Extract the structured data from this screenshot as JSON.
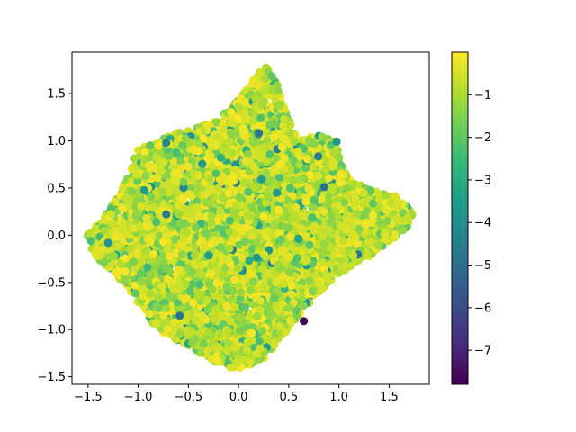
{
  "chart_data": {
    "type": "scatter",
    "title": "",
    "xlabel": "",
    "ylabel": "",
    "xlim": [
      -1.66,
      1.9
    ],
    "ylim": [
      -1.58,
      1.94
    ],
    "x_ticks": [
      -1.5,
      -1.0,
      -0.5,
      0.0,
      0.5,
      1.0,
      1.5
    ],
    "x_tick_labels": [
      "−1.5",
      "−1.0",
      "−0.5",
      "0.0",
      "0.5",
      "1.0",
      "1.5"
    ],
    "y_ticks": [
      -1.5,
      -1.0,
      -0.5,
      0.0,
      0.5,
      1.0,
      1.5
    ],
    "y_tick_labels": [
      "−1.5",
      "−1.0",
      "−0.5",
      "0.0",
      "0.5",
      "1.0",
      "1.5"
    ],
    "grid": false,
    "colormap": "viridis",
    "color_range": [
      -7.8,
      0.0
    ],
    "colorbar": {
      "ticks": [
        -1,
        -2,
        -3,
        -4,
        -5,
        -6,
        -7
      ],
      "tick_labels": [
        "−1",
        "−2",
        "−3",
        "−4",
        "−5",
        "−6",
        "−7"
      ]
    },
    "cloud_outline": [
      [
        -1.52,
        -0.02
      ],
      [
        -1.38,
        0.15
      ],
      [
        -1.2,
        0.4
      ],
      [
        -1.08,
        0.66
      ],
      [
        -1.02,
        0.9
      ],
      [
        -0.8,
        1.02
      ],
      [
        -0.5,
        1.12
      ],
      [
        -0.3,
        1.18
      ],
      [
        -0.1,
        1.32
      ],
      [
        0.05,
        1.5
      ],
      [
        0.2,
        1.72
      ],
      [
        0.28,
        1.8
      ],
      [
        0.38,
        1.6
      ],
      [
        0.48,
        1.3
      ],
      [
        0.55,
        1.08
      ],
      [
        0.65,
        1.02
      ],
      [
        0.82,
        1.08
      ],
      [
        0.98,
        1.02
      ],
      [
        1.0,
        0.85
      ],
      [
        1.1,
        0.6
      ],
      [
        1.3,
        0.48
      ],
      [
        1.55,
        0.42
      ],
      [
        1.68,
        0.3
      ],
      [
        1.75,
        0.2
      ],
      [
        1.68,
        0.08
      ],
      [
        1.45,
        -0.12
      ],
      [
        1.2,
        -0.3
      ],
      [
        1.0,
        -0.4
      ],
      [
        0.8,
        -0.6
      ],
      [
        0.62,
        -0.82
      ],
      [
        0.45,
        -1.05
      ],
      [
        0.28,
        -1.3
      ],
      [
        0.1,
        -1.4
      ],
      [
        -0.1,
        -1.4
      ],
      [
        -0.3,
        -1.3
      ],
      [
        -0.55,
        -1.15
      ],
      [
        -0.8,
        -1.0
      ],
      [
        -0.95,
        -0.8
      ],
      [
        -1.1,
        -0.55
      ],
      [
        -1.3,
        -0.35
      ],
      [
        -1.45,
        -0.2
      ]
    ],
    "point_count": 6000,
    "value_distribution": "mostly between -2.0 and -0.1, sparse lower values down to -7.8",
    "notable_points": [
      {
        "x": 0.65,
        "y": -0.91,
        "value": -7.6
      },
      {
        "x": -0.72,
        "y": 0.98,
        "value": -4.2
      },
      {
        "x": -0.72,
        "y": 0.22,
        "value": -4.5
      },
      {
        "x": 0.38,
        "y": 0.45,
        "value": -3.5
      }
    ]
  }
}
